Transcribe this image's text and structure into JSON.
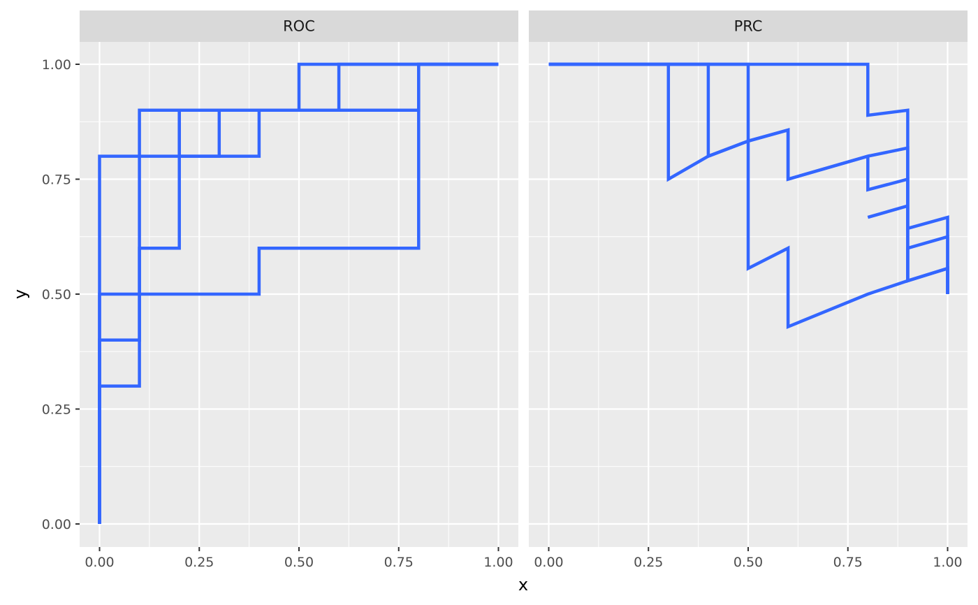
{
  "chart_data": {
    "type": "line",
    "xlabel": "x",
    "ylabel": "y",
    "xlim": [
      0,
      1
    ],
    "ylim": [
      0,
      1
    ],
    "x_ticks": [
      "0.00",
      "0.25",
      "0.50",
      "0.75",
      "1.00"
    ],
    "y_ticks": [
      "0.00",
      "0.25",
      "0.50",
      "0.75",
      "1.00"
    ],
    "grid": true,
    "line_color": "#3366ff",
    "panel_background": "#ebebeb",
    "strip_background": "#d9d9d9",
    "panels": [
      {
        "title": "ROC",
        "series": [
          {
            "points": [
              [
                0,
                0
              ],
              [
                0,
                0.3
              ],
              [
                0.1,
                0.3
              ],
              [
                0.1,
                0.6
              ],
              [
                0.2,
                0.6
              ],
              [
                0.2,
                0.9
              ],
              [
                0.3,
                0.9
              ],
              [
                0.4,
                0.9
              ],
              [
                0.5,
                0.9
              ],
              [
                0.6,
                0.9
              ],
              [
                0.8,
                0.9
              ],
              [
                0.8,
                1
              ],
              [
                1,
                1
              ]
            ]
          },
          {
            "points": [
              [
                0,
                0
              ],
              [
                0,
                0.4
              ],
              [
                0.1,
                0.4
              ],
              [
                0.1,
                0.5
              ],
              [
                0.2,
                0.5
              ],
              [
                0.3,
                0.5
              ],
              [
                0.4,
                0.5
              ],
              [
                0.4,
                0.6
              ],
              [
                0.6,
                0.6
              ],
              [
                0.8,
                0.6
              ],
              [
                0.8,
                1
              ],
              [
                1,
                1
              ]
            ]
          },
          {
            "points": [
              [
                0,
                0
              ],
              [
                0,
                0.5
              ],
              [
                0.1,
                0.5
              ],
              [
                0.1,
                0.8
              ],
              [
                0.2,
                0.8
              ],
              [
                0.3,
                0.8
              ],
              [
                0.3,
                0.9
              ],
              [
                0.4,
                0.9
              ],
              [
                0.5,
                0.9
              ],
              [
                0.5,
                1
              ],
              [
                0.6,
                1
              ],
              [
                0.8,
                1
              ],
              [
                1,
                1
              ]
            ]
          },
          {
            "points": [
              [
                0,
                0
              ],
              [
                0,
                0.8
              ],
              [
                0.1,
                0.8
              ],
              [
                0.1,
                0.9
              ],
              [
                0.2,
                0.9
              ],
              [
                0.2,
                0.8
              ],
              [
                0.3,
                0.8
              ],
              [
                0.4,
                0.8
              ],
              [
                0.4,
                0.9
              ],
              [
                0.6,
                0.9
              ],
              [
                0.6,
                1
              ],
              [
                0.8,
                1
              ],
              [
                1,
                1
              ]
            ]
          }
        ]
      },
      {
        "title": "PRC",
        "series": [
          {
            "points": [
              [
                0,
                1
              ],
              [
                0.3,
                1
              ],
              [
                0.3,
                0.75
              ],
              [
                0.4,
                0.8
              ],
              [
                0.5,
                0.833
              ],
              [
                0.6,
                0.857
              ],
              [
                0.6,
                0.75
              ],
              [
                0.8,
                0.8
              ],
              [
                0.9,
                0.818
              ],
              [
                0.9,
                0.529
              ],
              [
                1,
                0.556
              ],
              [
                1,
                0.5
              ]
            ]
          },
          {
            "points": [
              [
                0,
                1
              ],
              [
                0.4,
                1
              ],
              [
                0.4,
                0.8
              ],
              [
                0.5,
                0.833
              ],
              [
                0.5,
                0.556
              ],
              [
                0.6,
                0.6
              ],
              [
                0.6,
                0.429
              ],
              [
                0.8,
                0.5
              ],
              [
                0.9,
                0.529
              ],
              [
                0.9,
                0.6
              ],
              [
                1,
                0.625
              ],
              [
                1,
                0.5
              ]
            ]
          },
          {
            "points": [
              [
                0,
                1
              ],
              [
                0.5,
                1
              ],
              [
                0.5,
                0.833
              ],
              [
                0.6,
                0.857
              ],
              [
                0.6,
                0.75
              ],
              [
                0.8,
                0.8
              ],
              [
                0.8,
                0.727
              ],
              [
                0.9,
                0.75
              ],
              [
                0.9,
                0.643
              ],
              [
                1,
                0.667
              ],
              [
                1,
                0.5
              ]
            ]
          },
          {
            "points": [
              [
                0,
                1
              ],
              [
                0.8,
                1
              ],
              [
                0.8,
                0.889
              ],
              [
                0.9,
                0.9
              ],
              [
                0.9,
                0.818
              ],
              [
                0.9,
                0.75
              ],
              [
                0.9,
                0.692
              ],
              [
                0.8,
                0.667
              ],
              [
                0.9,
                0.692
              ],
              [
                0.9,
                0.529
              ],
              [
                1,
                0.556
              ],
              [
                1,
                0.5
              ]
            ]
          }
        ]
      }
    ]
  }
}
